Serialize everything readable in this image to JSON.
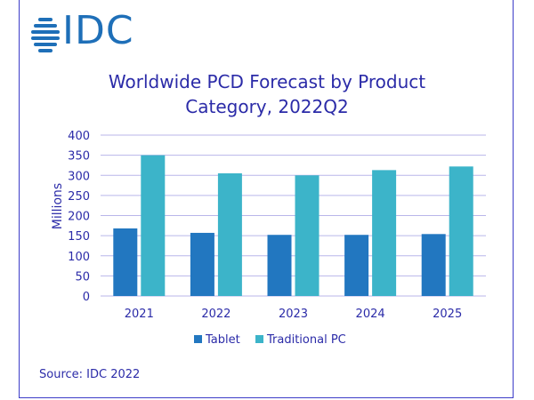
{
  "brand": {
    "logo_text": "IDC"
  },
  "source_note": "Source: IDC 2022",
  "colors": {
    "tablet": "#2277c0",
    "pc": "#3cb4c9",
    "text": "#2b2ba8",
    "grid": "#b9b6ea"
  },
  "chart_data": {
    "type": "bar",
    "title_line1": "Worldwide PCD Forecast by Product",
    "title_line2": "Category, 2022Q2",
    "ylabel": "Millions",
    "xlabel": "",
    "ylim": [
      0,
      400
    ],
    "yticks": [
      0,
      50,
      100,
      150,
      200,
      250,
      300,
      350,
      400
    ],
    "categories": [
      "2021",
      "2022",
      "2023",
      "2024",
      "2025"
    ],
    "series": [
      {
        "name": "Tablet",
        "values": [
          168,
          157,
          152,
          152,
          154
        ]
      },
      {
        "name": "Traditional PC",
        "values": [
          350,
          305,
          300,
          313,
          322
        ]
      }
    ],
    "legend_position": "bottom"
  }
}
